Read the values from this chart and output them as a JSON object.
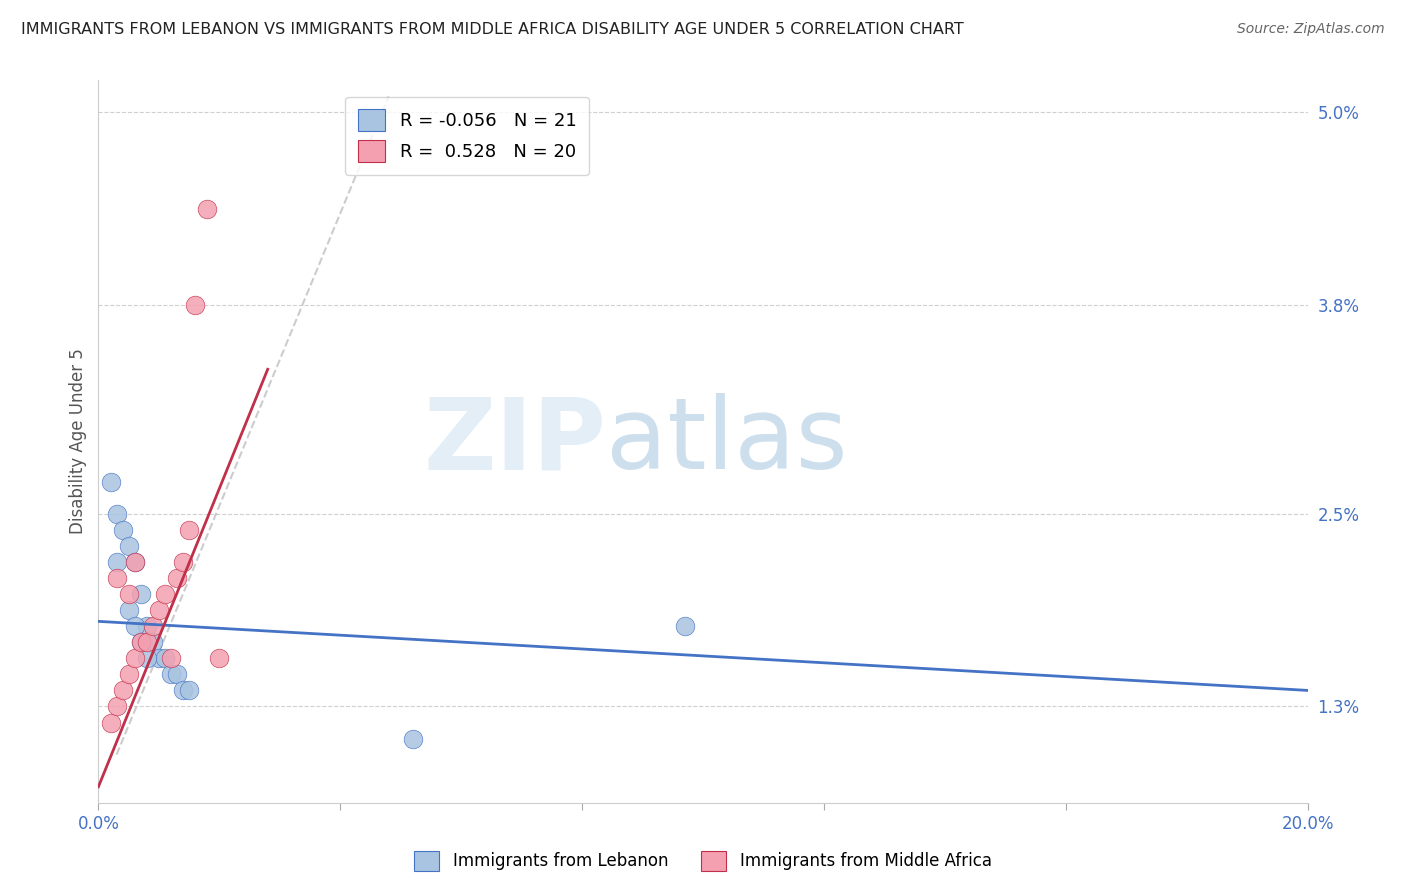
{
  "title": "IMMIGRANTS FROM LEBANON VS IMMIGRANTS FROM MIDDLE AFRICA DISABILITY AGE UNDER 5 CORRELATION CHART",
  "source": "Source: ZipAtlas.com",
  "ylabel": "Disability Age Under 5",
  "legend_label_blue": "Immigrants from Lebanon",
  "legend_label_pink": "Immigrants from Middle Africa",
  "R_blue": -0.056,
  "N_blue": 21,
  "R_pink": 0.528,
  "N_pink": 20,
  "xlim": [
    0.0,
    0.2
  ],
  "ylim": [
    0.007,
    0.052
  ],
  "xtick_values": [
    0.0,
    0.04,
    0.08,
    0.12,
    0.16,
    0.2
  ],
  "xtick_labels": [
    "0.0%",
    "",
    "",
    "",
    "",
    "20.0%"
  ],
  "ytick_labels_right": [
    "1.3%",
    "2.5%",
    "3.8%",
    "5.0%"
  ],
  "ytick_values_right": [
    0.013,
    0.025,
    0.038,
    0.05
  ],
  "color_blue": "#a8c4e0",
  "color_pink": "#f4a0b0",
  "color_trendline_blue": "#4472c4",
  "color_trendline_pink": "#c0304a",
  "color_refline": "#c0c0c0",
  "color_grid": "#d0d0d0",
  "color_title": "#222222",
  "color_source": "#666666",
  "color_axis_right": "#4472c4",
  "color_axis_bottom": "#4472c4",
  "watermark_zip": "ZIP",
  "watermark_atlas": "atlas",
  "scatter_blue_x": [
    0.002,
    0.003,
    0.004,
    0.005,
    0.006,
    0.007,
    0.008,
    0.009,
    0.01,
    0.011,
    0.012,
    0.013,
    0.014,
    0.015,
    0.003,
    0.005,
    0.006,
    0.007,
    0.008,
    0.097,
    0.052
  ],
  "scatter_blue_y": [
    0.027,
    0.025,
    0.024,
    0.023,
    0.022,
    0.02,
    0.018,
    0.017,
    0.016,
    0.016,
    0.015,
    0.015,
    0.014,
    0.014,
    0.022,
    0.019,
    0.018,
    0.017,
    0.016,
    0.018,
    0.011
  ],
  "scatter_pink_x": [
    0.002,
    0.003,
    0.004,
    0.005,
    0.006,
    0.007,
    0.008,
    0.009,
    0.01,
    0.011,
    0.012,
    0.013,
    0.014,
    0.015,
    0.003,
    0.005,
    0.006,
    0.016,
    0.018,
    0.02
  ],
  "scatter_pink_y": [
    0.012,
    0.013,
    0.014,
    0.015,
    0.016,
    0.017,
    0.017,
    0.018,
    0.019,
    0.02,
    0.016,
    0.021,
    0.022,
    0.024,
    0.021,
    0.02,
    0.022,
    0.038,
    0.044,
    0.016
  ],
  "marker_size": 180
}
